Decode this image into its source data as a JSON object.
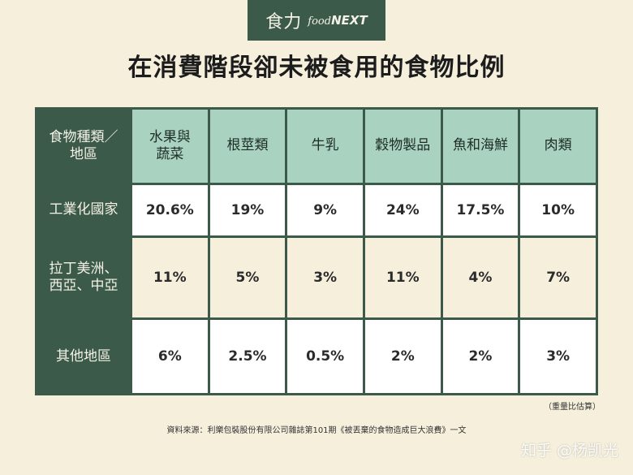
{
  "logo": {
    "cn": "食力",
    "en_food": "food",
    "en_next": "NEXT"
  },
  "title": "在消費階段卻未被食用的食物比例",
  "table": {
    "corner": "食物種類／\n地區",
    "columns": [
      "水果與\n蔬菜",
      "根莖類",
      "牛乳",
      "穀物製品",
      "魚和海鮮",
      "肉類"
    ],
    "rows": [
      {
        "label": "工業化國家",
        "values": [
          "20.6%",
          "19%",
          "9%",
          "24%",
          "17.5%",
          "10%"
        ]
      },
      {
        "label": "拉丁美洲、\n西亞、中亞",
        "values": [
          "11%",
          "5%",
          "3%",
          "11%",
          "4%",
          "7%"
        ]
      },
      {
        "label": "其他地區",
        "values": [
          "6%",
          "2.5%",
          "0.5%",
          "2%",
          "2%",
          "3%"
        ]
      }
    ]
  },
  "note": "（重量比估算）",
  "source": "資料來源：利樂包裝股份有限公司雜誌第101期《被丟棄的食物造成巨大浪費》一文",
  "watermark": "知乎 @杨凯光",
  "colors": {
    "dark_green": "#3b5a4a",
    "mint": "#a9d3c0",
    "cream": "#f5efdc",
    "white": "#ffffff"
  }
}
